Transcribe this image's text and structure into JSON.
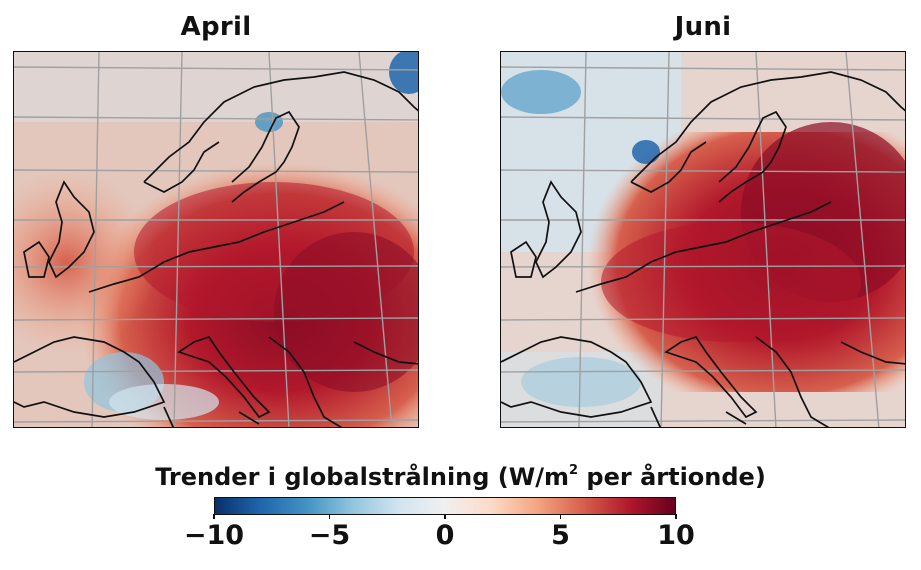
{
  "panels": [
    {
      "title": "April"
    },
    {
      "title": "Juni"
    }
  ],
  "colorbar": {
    "label_prefix": "Trender i globalstrålning (W/m",
    "label_sup": "2",
    "label_suffix": " per årtionde)",
    "min": -10,
    "max": 10,
    "ticks": [
      {
        "value": -10,
        "label": "−10"
      },
      {
        "value": -5,
        "label": "−5"
      },
      {
        "value": 0,
        "label": "0"
      },
      {
        "value": 5,
        "label": "5"
      },
      {
        "value": 10,
        "label": "10"
      }
    ],
    "colors": [
      "#08306b",
      "#2166ac",
      "#4393c3",
      "#92c5de",
      "#d1e5f0",
      "#f0f0f0",
      "#fddbc7",
      "#f4a582",
      "#d6604d",
      "#b2182b",
      "#67001f"
    ]
  }
}
